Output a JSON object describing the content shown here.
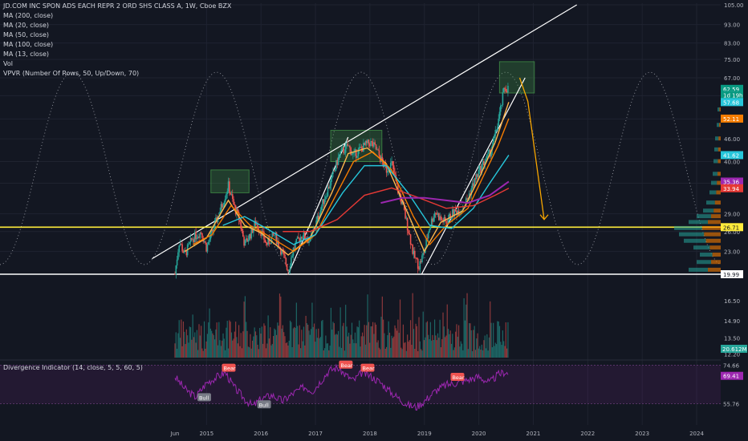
{
  "legend": {
    "title": "JD.COM INC SPON ADS EACH REPR 2 ORD SHS CLASS A, 1W, Cboe BZX",
    "studies": [
      "MA (200, close)",
      "MA (20, close)",
      "MA (50, close)",
      "MA (100, close)",
      "MA (13, close)",
      "Vol",
      "VPVR (Number Of Rows, 50, Up/Down, 70)"
    ]
  },
  "indicator_legend": "Divergence Indicator (14, close, 5, 5, 60, 5)",
  "colors": {
    "background": "#131722",
    "grid": "#1f2330",
    "up": "#26a69a",
    "down": "#ef5350",
    "ma200": "#9c27b0",
    "ma20": "#f57c00",
    "ma50": "#26c6da",
    "ma100": "#e53935",
    "ma13": "#ffb74d",
    "osc": "#9c27b0",
    "trendline": "#ffffff",
    "projection": "#f7a600",
    "support": "#ffeb3b"
  },
  "chart_data": {
    "type": "candlestick",
    "symbol": "JD",
    "interval": "1W",
    "x_ticks": [
      "Jun",
      "2015",
      "2016",
      "2017",
      "2018",
      "2019",
      "2020",
      "2021",
      "2022",
      "2023",
      "2024"
    ],
    "price_ticks": [
      105.0,
      93.0,
      83.0,
      75.0,
      67.0,
      60.0,
      52.0,
      46.0,
      40.0,
      35.0,
      29.0,
      26.0,
      23.0,
      20.0,
      19.99
    ],
    "price_markers": [
      {
        "label": "62.59",
        "price": 62.59,
        "color": "#089981"
      },
      {
        "label": "1d 19h",
        "price": 60.3,
        "color": "#089981"
      },
      {
        "label": "57.68",
        "price": 57.68,
        "color": "#26c6da"
      },
      {
        "label": "52.11",
        "price": 52.11,
        "color": "#f57c00"
      },
      {
        "label": "41.62",
        "price": 41.62,
        "color": "#26c6da"
      },
      {
        "label": "35.36",
        "price": 35.36,
        "color": "#9c27b0"
      },
      {
        "label": "33.94",
        "price": 33.94,
        "color": "#e53935"
      },
      {
        "label": "26.71",
        "price": 26.71,
        "color": "#ffeb3b"
      },
      {
        "label": "19.99",
        "price": 19.99,
        "color": "#ffffff"
      }
    ],
    "close_series": [
      [
        2014.42,
        20.0
      ],
      [
        2014.5,
        24.5
      ],
      [
        2014.6,
        22.5
      ],
      [
        2014.75,
        25.0
      ],
      [
        2014.9,
        26.0
      ],
      [
        2015.0,
        23.5
      ],
      [
        2015.15,
        27.0
      ],
      [
        2015.3,
        31.0
      ],
      [
        2015.4,
        34.5
      ],
      [
        2015.5,
        30.5
      ],
      [
        2015.6,
        28.0
      ],
      [
        2015.7,
        24.0
      ],
      [
        2015.8,
        25.5
      ],
      [
        2015.9,
        27.5
      ],
      [
        2016.0,
        26.0
      ],
      [
        2016.1,
        24.0
      ],
      [
        2016.25,
        25.5
      ],
      [
        2016.4,
        22.5
      ],
      [
        2016.5,
        20.5
      ],
      [
        2016.6,
        23.5
      ],
      [
        2016.75,
        25.5
      ],
      [
        2016.9,
        24.5
      ],
      [
        2017.0,
        27.0
      ],
      [
        2017.15,
        31.5
      ],
      [
        2017.3,
        36.0
      ],
      [
        2017.45,
        42.0
      ],
      [
        2017.6,
        44.0
      ],
      [
        2017.7,
        41.5
      ],
      [
        2017.85,
        43.5
      ],
      [
        2018.0,
        45.0
      ],
      [
        2018.1,
        43.5
      ],
      [
        2018.2,
        40.5
      ],
      [
        2018.3,
        38.0
      ],
      [
        2018.4,
        39.5
      ],
      [
        2018.5,
        34.0
      ],
      [
        2018.6,
        30.5
      ],
      [
        2018.7,
        26.5
      ],
      [
        2018.8,
        22.5
      ],
      [
        2018.9,
        21.0
      ],
      [
        2019.0,
        23.0
      ],
      [
        2019.1,
        27.0
      ],
      [
        2019.2,
        29.5
      ],
      [
        2019.3,
        28.0
      ],
      [
        2019.4,
        27.5
      ],
      [
        2019.5,
        29.0
      ],
      [
        2019.6,
        29.5
      ],
      [
        2019.7,
        30.0
      ],
      [
        2019.8,
        32.0
      ],
      [
        2019.9,
        35.0
      ],
      [
        2020.0,
        37.5
      ],
      [
        2020.1,
        40.0
      ],
      [
        2020.2,
        42.0
      ],
      [
        2020.3,
        47.0
      ],
      [
        2020.4,
        55.0
      ],
      [
        2020.47,
        63.0
      ],
      [
        2020.55,
        62.59
      ]
    ],
    "ma_series": {
      "ma13": [
        [
          2014.6,
          23.0
        ],
        [
          2015.0,
          25.0
        ],
        [
          2015.4,
          31.5
        ],
        [
          2015.7,
          27.0
        ],
        [
          2016.0,
          25.8
        ],
        [
          2016.5,
          22.5
        ],
        [
          2016.9,
          25.0
        ],
        [
          2017.3,
          33.0
        ],
        [
          2017.6,
          42.0
        ],
        [
          2017.95,
          43.5
        ],
        [
          2018.3,
          39.5
        ],
        [
          2018.7,
          29.0
        ],
        [
          2019.0,
          23.0
        ],
        [
          2019.3,
          27.5
        ],
        [
          2019.7,
          29.5
        ],
        [
          2020.0,
          36.0
        ],
        [
          2020.3,
          45.0
        ],
        [
          2020.55,
          57.68
        ]
      ],
      "ma20": [
        [
          2014.75,
          24.0
        ],
        [
          2015.1,
          25.5
        ],
        [
          2015.45,
          30.5
        ],
        [
          2015.8,
          27.0
        ],
        [
          2016.1,
          25.5
        ],
        [
          2016.6,
          23.0
        ],
        [
          2017.0,
          25.5
        ],
        [
          2017.35,
          32.0
        ],
        [
          2017.7,
          40.0
        ],
        [
          2018.05,
          42.5
        ],
        [
          2018.4,
          38.0
        ],
        [
          2018.8,
          28.5
        ],
        [
          2019.1,
          24.0
        ],
        [
          2019.4,
          27.0
        ],
        [
          2019.8,
          30.0
        ],
        [
          2020.1,
          37.0
        ],
        [
          2020.35,
          44.0
        ],
        [
          2020.55,
          52.11
        ]
      ],
      "ma50": [
        [
          2015.3,
          27.0
        ],
        [
          2015.7,
          28.5
        ],
        [
          2016.1,
          26.5
        ],
        [
          2016.6,
          24.0
        ],
        [
          2017.0,
          25.5
        ],
        [
          2017.5,
          33.0
        ],
        [
          2017.9,
          39.0
        ],
        [
          2018.3,
          39.0
        ],
        [
          2018.7,
          33.0
        ],
        [
          2019.1,
          27.0
        ],
        [
          2019.5,
          26.5
        ],
        [
          2019.9,
          30.0
        ],
        [
          2020.2,
          35.0
        ],
        [
          2020.55,
          41.62
        ]
      ],
      "ma100": [
        [
          2016.4,
          26.0
        ],
        [
          2016.9,
          26.0
        ],
        [
          2017.4,
          28.0
        ],
        [
          2017.9,
          32.5
        ],
        [
          2018.4,
          34.0
        ],
        [
          2018.9,
          32.0
        ],
        [
          2019.4,
          30.0
        ],
        [
          2019.9,
          30.5
        ],
        [
          2020.3,
          32.5
        ],
        [
          2020.55,
          33.94
        ]
      ],
      "ma200": [
        [
          2018.2,
          31.0
        ],
        [
          2018.6,
          32.0
        ],
        [
          2019.0,
          32.0
        ],
        [
          2019.4,
          31.5
        ],
        [
          2019.8,
          31.0
        ],
        [
          2020.2,
          32.5
        ],
        [
          2020.55,
          35.36
        ]
      ]
    },
    "trendlines": [
      {
        "from": [
          2014.0,
          22.0
        ],
        "to": [
          2021.8,
          105.0
        ],
        "color": "#ffffff"
      },
      {
        "from": [
          2016.5,
          19.99
        ],
        "to": [
          2017.6,
          46.5
        ],
        "color": "#ffffff"
      },
      {
        "from": [
          2018.95,
          19.99
        ],
        "to": [
          2020.85,
          67.0
        ],
        "color": "#ffffff"
      },
      {
        "from": [
          2014.0,
          19.99
        ],
        "to": [
          2024.8,
          19.99
        ],
        "color": "#ffffff"
      },
      {
        "from": [
          2014.0,
          26.71
        ],
        "to": [
          2024.8,
          26.71
        ],
        "color": "#ffeb3b"
      }
    ],
    "projection": [
      [
        2020.75,
        67.0
      ],
      [
        2020.9,
        58.0
      ],
      [
        2021.2,
        28.0
      ]
    ],
    "boxes": [
      {
        "x0": 2015.08,
        "x1": 2015.78,
        "y0": 33.0,
        "y1": 38.0
      },
      {
        "x0": 2017.28,
        "x1": 2018.22,
        "y0": 40.0,
        "y1": 48.5
      },
      {
        "x0": 2020.38,
        "x1": 2021.02,
        "y0": 61.0,
        "y1": 74.0
      }
    ],
    "volume_ticks": [
      16.5,
      14.9,
      13.5,
      12.2
    ],
    "volume_marker": {
      "label": "20.612M",
      "color": "#26a69a"
    },
    "volume_scale_max": 18.0,
    "osc_ticks": [
      74.66,
      55.76
    ],
    "osc_markers": [
      {
        "label": "74.66",
        "value": 74.66
      },
      {
        "label": "69.41",
        "value": 69.41,
        "color": "#9c27b0"
      },
      {
        "label": "55.76",
        "value": 55.76
      }
    ],
    "osc_series": [
      [
        2014.42,
        69.0
      ],
      [
        2014.6,
        63.0
      ],
      [
        2014.8,
        59.0
      ],
      [
        2015.0,
        66.0
      ],
      [
        2015.2,
        69.0
      ],
      [
        2015.35,
        71.0
      ],
      [
        2015.5,
        64.0
      ],
      [
        2015.7,
        58.0
      ],
      [
        2015.85,
        54.5
      ],
      [
        2016.0,
        58.0
      ],
      [
        2016.2,
        60.0
      ],
      [
        2016.4,
        57.0
      ],
      [
        2016.6,
        61.0
      ],
      [
        2016.8,
        64.0
      ],
      [
        2016.95,
        62.0
      ],
      [
        2017.1,
        67.0
      ],
      [
        2017.25,
        72.0
      ],
      [
        2017.4,
        73.5
      ],
      [
        2017.55,
        70.0
      ],
      [
        2017.7,
        67.0
      ],
      [
        2017.85,
        71.0
      ],
      [
        2018.0,
        69.5
      ],
      [
        2018.2,
        66.0
      ],
      [
        2018.4,
        61.0
      ],
      [
        2018.55,
        58.0
      ],
      [
        2018.7,
        55.0
      ],
      [
        2018.85,
        54.0
      ],
      [
        2019.0,
        57.0
      ],
      [
        2019.2,
        62.0
      ],
      [
        2019.4,
        65.0
      ],
      [
        2019.6,
        66.0
      ],
      [
        2019.8,
        67.5
      ],
      [
        2020.0,
        69.0
      ],
      [
        2020.2,
        66.0
      ],
      [
        2020.35,
        70.0
      ],
      [
        2020.5,
        71.5
      ],
      [
        2020.55,
        69.41
      ]
    ],
    "signals": [
      {
        "label": "Bear",
        "x": 2015.4,
        "y": 73.0,
        "kind": "bear"
      },
      {
        "label": "Bull",
        "x": 2014.95,
        "y": 58.5,
        "kind": "bull"
      },
      {
        "label": "Bull",
        "x": 2016.05,
        "y": 55.0,
        "kind": "bull"
      },
      {
        "label": "Bear",
        "x": 2017.55,
        "y": 74.5,
        "kind": "bear"
      },
      {
        "label": "Bear",
        "x": 2017.95,
        "y": 73.0,
        "kind": "bear"
      },
      {
        "label": "Bear",
        "x": 2019.6,
        "y": 68.5,
        "kind": "bear"
      }
    ]
  }
}
